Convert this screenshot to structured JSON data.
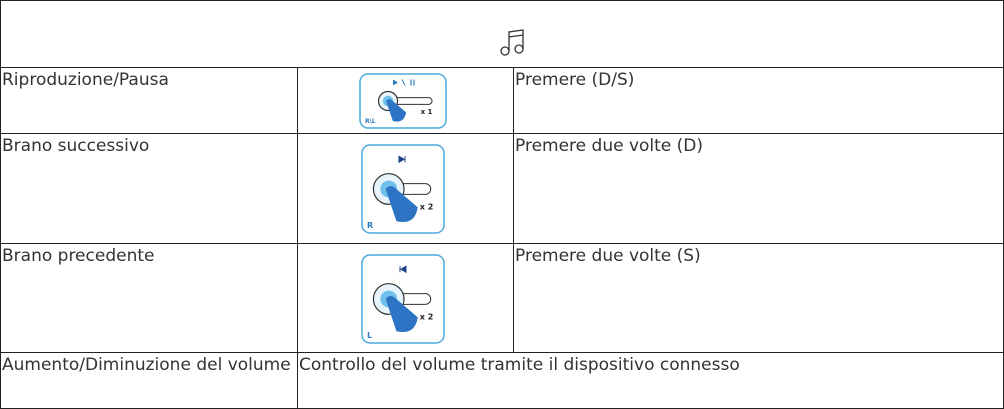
{
  "table": {
    "rows": [
      {
        "action": "Riproduzione/Pausa",
        "icon": {
          "count": "x 1",
          "side": "R\\L"
        },
        "instruction": "Premere (D/S)"
      },
      {
        "action": "Brano successivo",
        "icon": {
          "count": "x 2",
          "side": "R"
        },
        "instruction": "Premere due volte (D)"
      },
      {
        "action": "Brano precedente",
        "icon": {
          "count": "x 2",
          "side": "L"
        },
        "instruction": "Premere due volte (S)"
      },
      {
        "action": "Aumento/Diminuzione del volume",
        "instruction": "Controllo del volume tramite il dispositivo connesso"
      }
    ]
  }
}
